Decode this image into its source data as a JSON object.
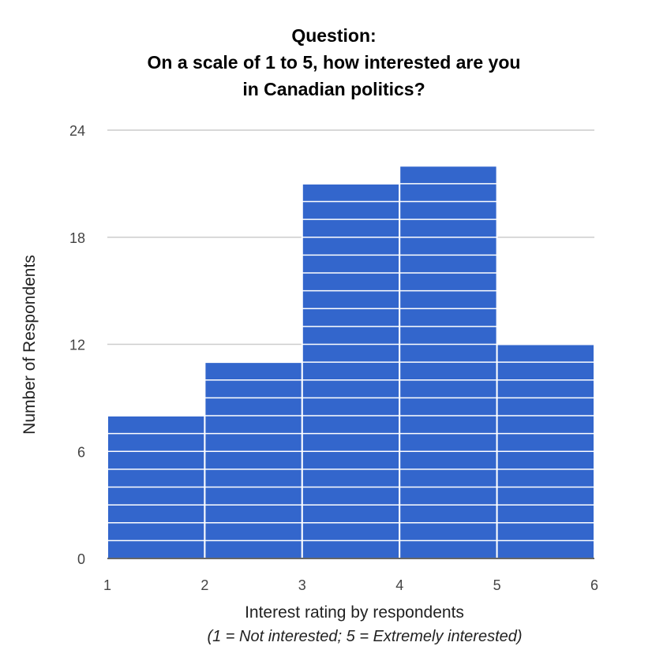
{
  "chart_data": {
    "type": "bar",
    "title_lines": [
      "Question:",
      "On a scale of 1 to 5, how interested are you",
      "in Canadian politics?"
    ],
    "xlabel": "Interest rating by respondents",
    "xlabel_note": "(1 = Not interested; 5 = Extremely interested)",
    "ylabel": "Number of Respondents",
    "x_ticks": [
      "1",
      "2",
      "3",
      "4",
      "5",
      "6"
    ],
    "y_ticks": [
      "0",
      "6",
      "12",
      "18",
      "24"
    ],
    "ylim": [
      0,
      24
    ],
    "bins": [
      {
        "from": 1,
        "to": 2,
        "value": 8
      },
      {
        "from": 2,
        "to": 3,
        "value": 11
      },
      {
        "from": 3,
        "to": 4,
        "value": 21
      },
      {
        "from": 4,
        "to": 5,
        "value": 22
      },
      {
        "from": 5,
        "to": 6,
        "value": 12
      }
    ],
    "grid": true,
    "bar_color": "#3366cc",
    "stripe_color": "#ffffff",
    "gridline_color": "#cccccc"
  }
}
